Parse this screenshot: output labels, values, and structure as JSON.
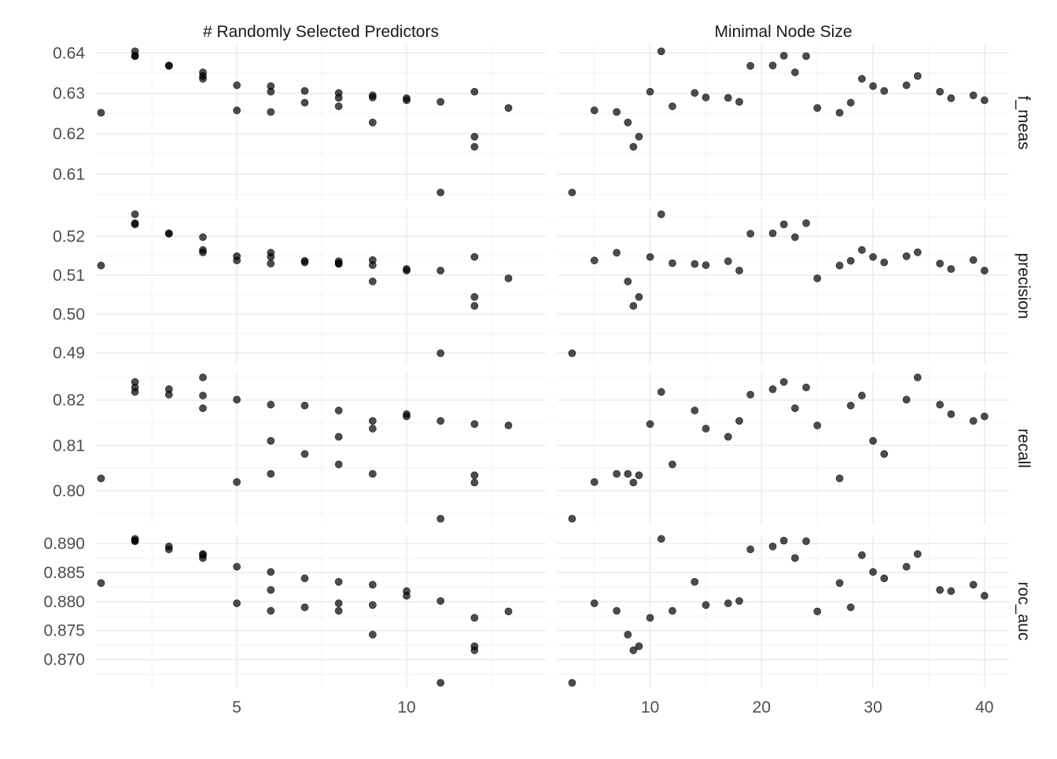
{
  "chart_data": {
    "type": "scatter",
    "title": "",
    "column_facets": [
      {
        "key": "mtry",
        "label": "# Randomly Selected Predictors",
        "xlim": [
          0.85,
          14.1
        ],
        "x_breaks": [
          5,
          10
        ],
        "x_minor": [
          2.5,
          7.5,
          12.5
        ]
      },
      {
        "key": "min_n",
        "label": "Minimal Node Size",
        "xlim": [
          1.7,
          42.2
        ],
        "x_breaks": [
          10,
          20,
          30,
          40
        ],
        "x_minor": [
          5,
          15,
          25,
          35
        ]
      }
    ],
    "row_facets": [
      {
        "key": "f_meas",
        "label": "f_meas",
        "ylim": [
          0.6035,
          0.642
        ],
        "y_breaks": [
          0.61,
          0.62,
          0.63,
          0.64
        ],
        "y_labels": [
          "0.61",
          "0.62",
          "0.63",
          "0.64"
        ],
        "y_minor": [
          0.605,
          0.615,
          0.625,
          0.635
        ]
      },
      {
        "key": "precision",
        "label": "precision",
        "ylim": [
          0.4875,
          0.527
        ],
        "y_breaks": [
          0.49,
          0.5,
          0.51,
          0.52
        ],
        "y_labels": [
          "0.49",
          "0.50",
          "0.51",
          "0.52"
        ],
        "y_minor": [
          0.495,
          0.505,
          0.515,
          0.525
        ]
      },
      {
        "key": "recall",
        "label": "recall",
        "ylim": [
          0.7925,
          0.8262
        ],
        "y_breaks": [
          0.8,
          0.81,
          0.82
        ],
        "y_labels": [
          "0.80",
          "0.81",
          "0.82"
        ],
        "y_minor": [
          0.795,
          0.805,
          0.815,
          0.825
        ]
      },
      {
        "key": "roc_auc",
        "label": "roc_auc",
        "ylim": [
          0.8652,
          0.8915
        ],
        "y_breaks": [
          0.87,
          0.875,
          0.88,
          0.885,
          0.89
        ],
        "y_labels": [
          "0.870",
          "0.875",
          "0.880",
          "0.885",
          "0.890"
        ],
        "y_minor": [
          0.8675,
          0.8725,
          0.8775,
          0.8825,
          0.8875
        ]
      }
    ],
    "points": [
      {
        "mtry": 1,
        "min_n": 27,
        "f_meas": 0.6252,
        "precision": 0.5125,
        "recall": 0.8027,
        "roc_auc": 0.8832
      },
      {
        "mtry": 2,
        "min_n": 11,
        "f_meas": 0.6404,
        "precision": 0.5257,
        "recall": 0.8218,
        "roc_auc": 0.8908
      },
      {
        "mtry": 2,
        "min_n": 22,
        "f_meas": 0.6393,
        "precision": 0.5231,
        "recall": 0.824,
        "roc_auc": 0.8905
      },
      {
        "mtry": 2,
        "min_n": 24,
        "f_meas": 0.6392,
        "precision": 0.5234,
        "recall": 0.8228,
        "roc_auc": 0.8904
      },
      {
        "mtry": 3,
        "min_n": 19,
        "f_meas": 0.6368,
        "precision": 0.5207,
        "recall": 0.8212,
        "roc_auc": 0.889
      },
      {
        "mtry": 3,
        "min_n": 21,
        "f_meas": 0.6369,
        "precision": 0.5208,
        "recall": 0.8224,
        "roc_auc": 0.8895
      },
      {
        "mtry": 4,
        "min_n": 23,
        "f_meas": 0.6352,
        "precision": 0.5198,
        "recall": 0.8182,
        "roc_auc": 0.8875
      },
      {
        "mtry": 4,
        "min_n": 34,
        "f_meas": 0.6343,
        "precision": 0.5159,
        "recall": 0.825,
        "roc_auc": 0.8882
      },
      {
        "mtry": 4,
        "min_n": 29,
        "f_meas": 0.6336,
        "precision": 0.5165,
        "recall": 0.821,
        "roc_auc": 0.888
      },
      {
        "mtry": 5,
        "min_n": 33,
        "f_meas": 0.632,
        "precision": 0.5149,
        "recall": 0.8201,
        "roc_auc": 0.886
      },
      {
        "mtry": 5,
        "min_n": 5,
        "f_meas": 0.6258,
        "precision": 0.5138,
        "recall": 0.8019,
        "roc_auc": 0.8797
      },
      {
        "mtry": 6,
        "min_n": 30,
        "f_meas": 0.6318,
        "precision": 0.5147,
        "recall": 0.811,
        "roc_auc": 0.8851
      },
      {
        "mtry": 6,
        "min_n": 36,
        "f_meas": 0.6304,
        "precision": 0.513,
        "recall": 0.819,
        "roc_auc": 0.882
      },
      {
        "mtry": 6,
        "min_n": 7,
        "f_meas": 0.6254,
        "precision": 0.5158,
        "recall": 0.8037,
        "roc_auc": 0.8784
      },
      {
        "mtry": 7,
        "min_n": 31,
        "f_meas": 0.6306,
        "precision": 0.5133,
        "recall": 0.8081,
        "roc_auc": 0.884
      },
      {
        "mtry": 7,
        "min_n": 28,
        "f_meas": 0.6277,
        "precision": 0.5137,
        "recall": 0.8188,
        "roc_auc": 0.879
      },
      {
        "mtry": 8,
        "min_n": 14,
        "f_meas": 0.6301,
        "precision": 0.5129,
        "recall": 0.8177,
        "roc_auc": 0.8834
      },
      {
        "mtry": 8,
        "min_n": 17,
        "f_meas": 0.6289,
        "precision": 0.5136,
        "recall": 0.8119,
        "roc_auc": 0.8797
      },
      {
        "mtry": 8,
        "min_n": 12,
        "f_meas": 0.6268,
        "precision": 0.5131,
        "recall": 0.8058,
        "roc_auc": 0.8784
      },
      {
        "mtry": 9,
        "min_n": 39,
        "f_meas": 0.6295,
        "precision": 0.5139,
        "recall": 0.8154,
        "roc_auc": 0.8829
      },
      {
        "mtry": 9,
        "min_n": 15,
        "f_meas": 0.629,
        "precision": 0.5126,
        "recall": 0.8137,
        "roc_auc": 0.8794
      },
      {
        "mtry": 9,
        "min_n": 8,
        "f_meas": 0.6228,
        "precision": 0.5084,
        "recall": 0.8037,
        "roc_auc": 0.8743
      },
      {
        "mtry": 10,
        "min_n": 37,
        "f_meas": 0.6288,
        "precision": 0.5116,
        "recall": 0.8169,
        "roc_auc": 0.8818
      },
      {
        "mtry": 10,
        "min_n": 40,
        "f_meas": 0.6283,
        "precision": 0.5112,
        "recall": 0.8164,
        "roc_auc": 0.881
      },
      {
        "mtry": 11,
        "min_n": 18,
        "f_meas": 0.6279,
        "precision": 0.5112,
        "recall": 0.8154,
        "roc_auc": 0.8801
      },
      {
        "mtry": 11,
        "min_n": 3,
        "f_meas": 0.6055,
        "precision": 0.4899,
        "recall": 0.7938,
        "roc_auc": 0.866
      },
      {
        "mtry": 12,
        "min_n": 10,
        "f_meas": 0.6304,
        "precision": 0.5147,
        "recall": 0.8147,
        "roc_auc": 0.8772
      },
      {
        "mtry": 12,
        "min_n": 9,
        "f_meas": 0.6193,
        "precision": 0.5044,
        "recall": 0.8034,
        "roc_auc": 0.8723
      },
      {
        "mtry": 12,
        "min_n": 8.5,
        "f_meas": 0.6168,
        "precision": 0.5021,
        "recall": 0.8018,
        "roc_auc": 0.8716
      },
      {
        "mtry": 13,
        "min_n": 25,
        "f_meas": 0.6264,
        "precision": 0.5092,
        "recall": 0.8144,
        "roc_auc": 0.8783
      }
    ]
  }
}
